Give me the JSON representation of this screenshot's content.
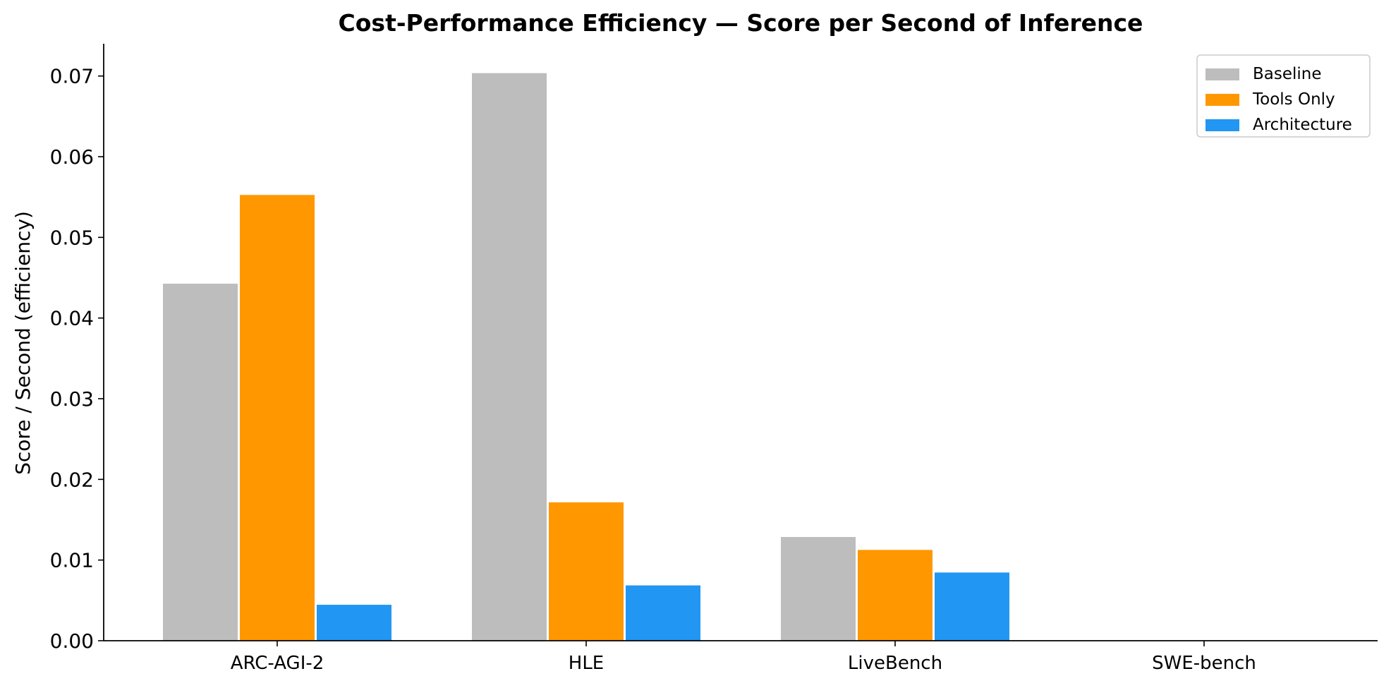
{
  "chart_data": {
    "type": "bar",
    "title": "Cost-Performance Efficiency — Score per Second of Inference",
    "xlabel": "",
    "ylabel": "Score / Second (efficiency)",
    "categories": [
      "ARC-AGI-2",
      "HLE",
      "LiveBench",
      "SWE-bench"
    ],
    "series": [
      {
        "name": "Baseline",
        "color": "#bdbdbd",
        "values": [
          0.0443,
          0.0704,
          0.0129,
          0
        ]
      },
      {
        "name": "Tools Only",
        "color": "#ff9800",
        "values": [
          0.0553,
          0.0172,
          0.0113,
          0
        ]
      },
      {
        "name": "Architecture",
        "color": "#2196f3",
        "values": [
          0.0045,
          0.0069,
          0.0085,
          0
        ]
      }
    ],
    "ylim": [
      0,
      0.074
    ],
    "yticks": [
      "0.00",
      "0.01",
      "0.02",
      "0.03",
      "0.04",
      "0.05",
      "0.06",
      "0.07"
    ],
    "grid": false,
    "legend_position": "top-right"
  }
}
